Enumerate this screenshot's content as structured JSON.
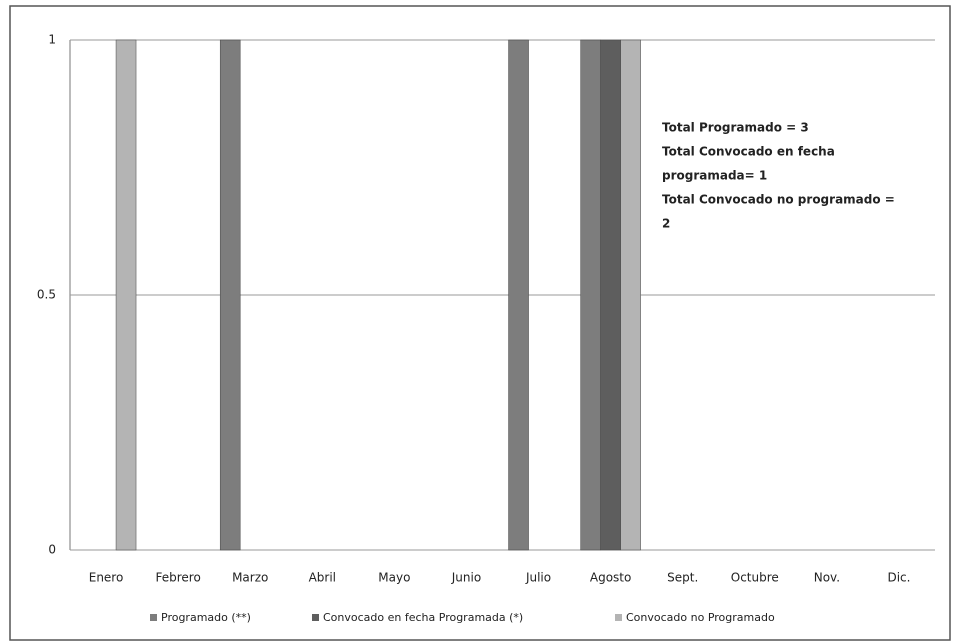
{
  "chart_data": {
    "type": "bar",
    "categories": [
      "Enero",
      "Febrero",
      "Marzo",
      "Abril",
      "Mayo",
      "Junio",
      "Julio",
      "Agosto",
      "Sept.",
      "Octubre",
      "Nov.",
      "Dic."
    ],
    "series": [
      {
        "name": "Programado (**)",
        "color": "#7d7d7d",
        "values": [
          0,
          0,
          1,
          0,
          0,
          0,
          1,
          1,
          0,
          0,
          0,
          0
        ]
      },
      {
        "name": "Convocado  en fecha Programada (*)",
        "color": "#5e5e5e",
        "values": [
          0,
          0,
          0,
          0,
          0,
          0,
          0,
          1,
          0,
          0,
          0,
          0
        ]
      },
      {
        "name": "Convocado no Programado",
        "color": "#b4b4b4",
        "values": [
          1,
          0,
          0,
          0,
          0,
          0,
          0,
          1,
          0,
          0,
          0,
          0
        ]
      }
    ],
    "ylim": [
      0,
      1
    ],
    "yticks": [
      0,
      0.5,
      1
    ],
    "grid": true,
    "annotations": [
      "Total Programado  = 3",
      "Total Convocado  en fecha",
      "programada= 1",
      "Total Convocado  no programado  =",
      "2"
    ]
  }
}
